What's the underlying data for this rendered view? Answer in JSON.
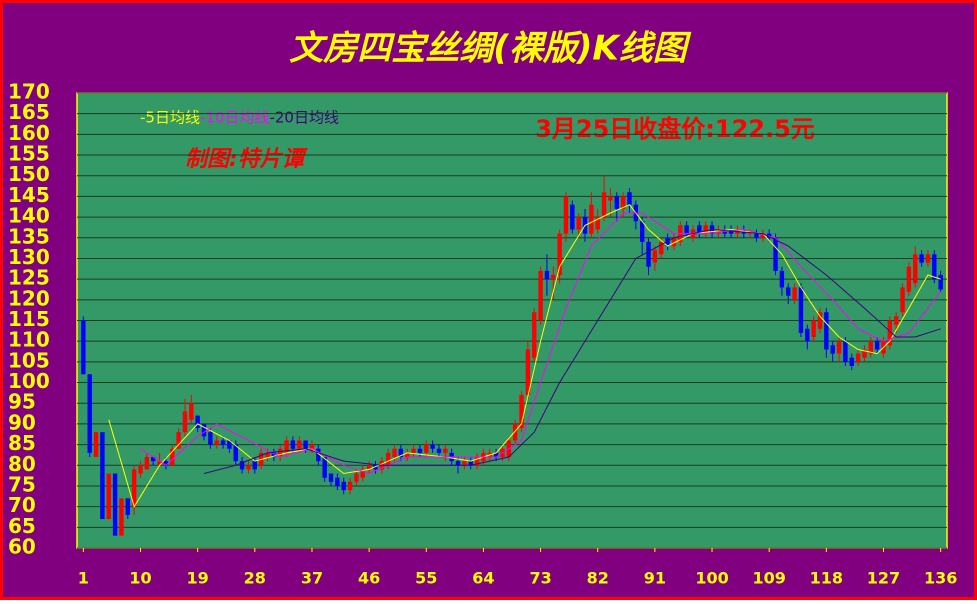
{
  "chart_data": {
    "type": "candlestick",
    "title": "文房四宝丝绸(裸版)K线图",
    "annotation": "3月25日收盘价:122.5元",
    "credit": "制图:特片谭",
    "up_color": "#ff0000",
    "down_color": "#0000ff",
    "grid": true,
    "xlim": [
      0,
      137
    ],
    "xticks": [
      1,
      10,
      19,
      28,
      37,
      46,
      55,
      64,
      73,
      82,
      91,
      100,
      109,
      118,
      127,
      136
    ],
    "ylim": [
      60,
      170
    ],
    "yticks": [
      60,
      65,
      70,
      75,
      80,
      85,
      90,
      95,
      100,
      105,
      110,
      115,
      120,
      125,
      130,
      135,
      140,
      145,
      150,
      155,
      160,
      165,
      170
    ],
    "x": [
      1,
      2,
      3,
      4,
      5,
      6,
      7,
      8,
      9,
      10,
      11,
      12,
      13,
      14,
      15,
      16,
      17,
      18,
      19,
      20,
      21,
      22,
      23,
      24,
      25,
      26,
      27,
      28,
      29,
      30,
      31,
      32,
      33,
      34,
      35,
      36,
      37,
      38,
      39,
      40,
      41,
      42,
      43,
      44,
      45,
      46,
      47,
      48,
      49,
      50,
      51,
      52,
      53,
      54,
      55,
      56,
      57,
      58,
      59,
      60,
      61,
      62,
      63,
      64,
      65,
      66,
      67,
      68,
      69,
      70,
      71,
      72,
      73,
      74,
      75,
      76,
      77,
      78,
      79,
      80,
      81,
      82,
      83,
      84,
      85,
      86,
      87,
      88,
      89,
      90,
      91,
      92,
      93,
      94,
      95,
      96,
      97,
      98,
      99,
      100,
      101,
      102,
      103,
      104,
      105,
      106,
      107,
      108,
      109,
      110,
      111,
      112,
      113,
      114,
      115,
      116,
      117,
      118,
      119,
      120,
      121,
      122,
      123,
      124,
      125,
      126,
      127,
      128,
      129,
      130,
      131,
      132,
      133,
      134,
      135,
      136
    ],
    "open": [
      115,
      102,
      82,
      88,
      67,
      78,
      63,
      72,
      70,
      78,
      79,
      82,
      80,
      81,
      80,
      84,
      88,
      91,
      92,
      90,
      88,
      85,
      86,
      86,
      85,
      81,
      79,
      81,
      80,
      82,
      83,
      82,
      83,
      86,
      84,
      86,
      84,
      84,
      82,
      78,
      77,
      76,
      74,
      76,
      77,
      79,
      80,
      79,
      80,
      82,
      84,
      82,
      83,
      84,
      83,
      85,
      84,
      83,
      83,
      81,
      80,
      81,
      80,
      81,
      82,
      83,
      82,
      82,
      86,
      89,
      97,
      106,
      115,
      127,
      125,
      126,
      136,
      143,
      137,
      140,
      136,
      137,
      140,
      144,
      145,
      142,
      146,
      143,
      139,
      134,
      129,
      131,
      135,
      133,
      134,
      138,
      135,
      138,
      136,
      138,
      136,
      137,
      137,
      136,
      137,
      136,
      136,
      135,
      136,
      135,
      127,
      123,
      120,
      123,
      113,
      111,
      113,
      117,
      109,
      107,
      110,
      106,
      105,
      106,
      107,
      110,
      107,
      109,
      114,
      117,
      122,
      124,
      131,
      129,
      131,
      126
    ],
    "high": [
      116,
      102,
      88,
      88,
      78,
      78,
      72,
      72,
      80,
      81,
      83,
      82,
      83,
      82,
      85,
      89,
      96,
      97,
      92,
      90,
      89,
      87,
      87,
      86,
      86,
      82,
      81,
      82,
      84,
      84,
      84,
      85,
      87,
      87,
      87,
      86,
      86,
      85,
      82,
      78,
      78,
      77,
      77,
      79,
      80,
      81,
      81,
      82,
      84,
      85,
      85,
      84,
      85,
      85,
      86,
      86,
      85,
      85,
      84,
      82,
      82,
      82,
      83,
      84,
      84,
      84,
      85,
      87,
      91,
      98,
      110,
      118,
      128,
      131,
      128,
      137,
      146,
      144,
      141,
      142,
      146,
      142,
      150,
      147,
      146,
      146,
      147,
      144,
      140,
      135,
      133,
      135,
      136,
      136,
      139,
      139,
      138,
      139,
      139,
      139,
      138,
      138,
      138,
      138,
      138,
      137,
      137,
      137,
      137,
      136,
      128,
      124,
      124,
      124,
      114,
      116,
      118,
      118,
      110,
      111,
      111,
      107,
      108,
      109,
      111,
      111,
      111,
      116,
      117,
      124,
      129,
      133,
      132,
      132,
      132,
      127
    ],
    "low": [
      102,
      82,
      82,
      67,
      67,
      63,
      63,
      67,
      68,
      77,
      79,
      80,
      80,
      79,
      80,
      84,
      87,
      90,
      88,
      86,
      84,
      84,
      84,
      83,
      80,
      78,
      78,
      78,
      79,
      81,
      81,
      81,
      82,
      83,
      83,
      83,
      83,
      80,
      76,
      75,
      74,
      73,
      73,
      75,
      76,
      78,
      78,
      78,
      79,
      81,
      81,
      81,
      82,
      82,
      82,
      83,
      82,
      81,
      80,
      78,
      79,
      79,
      79,
      80,
      81,
      81,
      81,
      81,
      85,
      88,
      96,
      105,
      114,
      121,
      120,
      124,
      134,
      136,
      135,
      134,
      135,
      136,
      139,
      140,
      139,
      140,
      141,
      137,
      131,
      126,
      127,
      130,
      132,
      132,
      133,
      135,
      134,
      135,
      135,
      135,
      135,
      135,
      135,
      135,
      135,
      135,
      134,
      134,
      134,
      126,
      121,
      119,
      119,
      111,
      108,
      110,
      112,
      106,
      105,
      105,
      104,
      103,
      104,
      105,
      106,
      107,
      106,
      108,
      112,
      116,
      121,
      123,
      128,
      128,
      124,
      122
    ],
    "close": [
      102,
      83,
      88,
      67,
      78,
      63,
      72,
      68,
      79,
      80,
      82,
      81,
      81,
      80,
      84,
      88,
      93,
      95,
      89,
      87,
      85,
      86,
      85,
      84,
      81,
      79,
      80,
      79,
      83,
      83,
      82,
      84,
      86,
      84,
      86,
      84,
      85,
      81,
      77,
      76,
      75,
      74,
      76,
      78,
      79,
      80,
      79,
      81,
      83,
      84,
      82,
      83,
      84,
      83,
      85,
      84,
      83,
      84,
      81,
      80,
      81,
      80,
      82,
      83,
      83,
      82,
      84,
      86,
      90,
      97,
      108,
      117,
      127,
      125,
      126,
      136,
      145,
      137,
      140,
      136,
      143,
      140,
      146,
      145,
      142,
      145,
      143,
      139,
      134,
      128,
      132,
      134,
      133,
      135,
      138,
      136,
      137,
      136,
      138,
      136,
      137,
      136,
      136,
      137,
      136,
      136.5,
      135,
      136,
      135,
      127,
      123,
      121,
      123,
      112,
      110,
      115,
      117,
      108,
      107,
      110,
      105,
      104,
      107,
      108,
      110,
      108,
      110,
      115,
      116,
      123,
      128,
      131,
      129,
      131,
      125,
      122.5
    ],
    "series": [
      {
        "name": "-5日均线",
        "color": "#ffff00",
        "x": [
          5,
          9,
          13,
          19,
          24,
          28,
          33,
          37,
          42,
          46,
          52,
          58,
          62,
          66,
          70,
          73,
          76,
          80,
          84,
          87,
          90,
          93,
          97,
          103,
          108,
          111,
          114,
          117,
          120,
          123,
          126,
          128,
          131,
          134,
          136
        ],
        "values": [
          91,
          70,
          80,
          90,
          86,
          81,
          83,
          84,
          78,
          79,
          83,
          82,
          81,
          83,
          90,
          110,
          128,
          138,
          141,
          143,
          137,
          133,
          136,
          137,
          136,
          131,
          123,
          116,
          111,
          108,
          107,
          110,
          118,
          126,
          125
        ]
      },
      {
        "name": "-10日均线",
        "color": "#ff00ff",
        "x": [
          10,
          14,
          19,
          22,
          27,
          32,
          37,
          42,
          46,
          52,
          60,
          66,
          70,
          73,
          77,
          81,
          86,
          89,
          94,
          99,
          105,
          110,
          114,
          119,
          123,
          127,
          131,
          134,
          136
        ],
        "values": [
          84,
          80,
          87,
          90,
          86,
          82,
          84,
          80,
          78,
          82,
          82,
          82,
          86,
          100,
          118,
          133,
          141,
          141,
          136,
          136,
          137,
          135,
          128,
          120,
          113,
          110,
          112,
          118,
          122
        ]
      },
      {
        "name": "-20日均线",
        "color": "#400080",
        "x": [
          20,
          25,
          30,
          36,
          42,
          48,
          55,
          62,
          68,
          72,
          76,
          82,
          88,
          94,
          100,
          108,
          112,
          118,
          124,
          129,
          132,
          136
        ],
        "values": [
          78,
          80,
          83,
          84,
          81,
          80,
          80,
          80,
          82,
          88,
          100,
          115,
          130,
          135,
          137,
          136,
          133,
          126,
          118,
          111,
          111,
          113
        ]
      }
    ]
  }
}
